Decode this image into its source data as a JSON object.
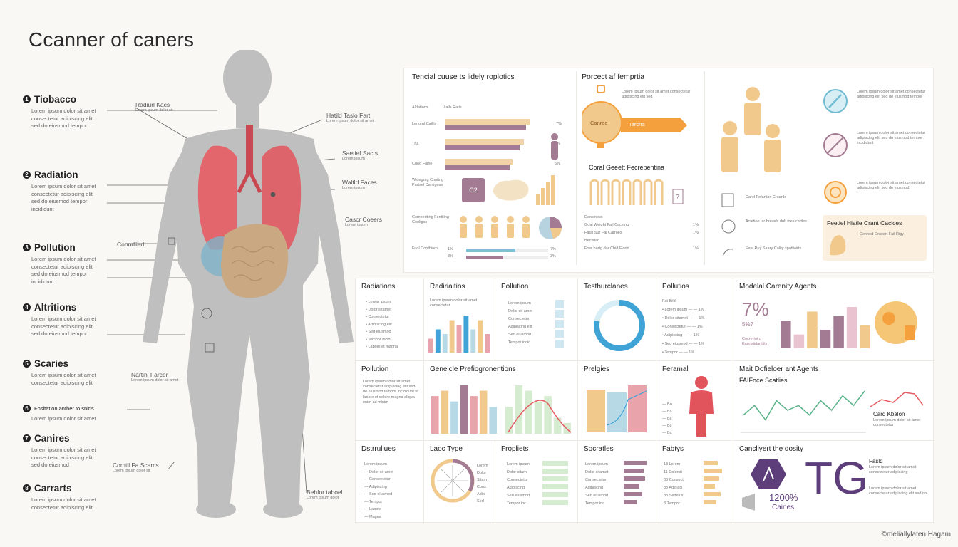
{
  "title": "Ccanner of caners",
  "footer": "©meliallylaten Hagam",
  "factors": [
    {
      "num": "1",
      "title": "Tiobacco",
      "body": "Lorem ipsum dolor sit amet consectetur adipiscing elit sed do eiusmod tempor"
    },
    {
      "num": "2",
      "title": "Radiation",
      "body": "Lorem ipsum dolor sit amet consectetur adipiscing elit sed do eiusmod tempor incididunt"
    },
    {
      "num": "3",
      "title": "Pollution",
      "body": "Lorem ipsum dolor sit amet consectetur adipiscing elit sed do eiusmod tempor incididunt"
    },
    {
      "num": "4",
      "title": "Altritions",
      "body": "Lorem ipsum dolor sit amet consectetur adipiscing elit sed do eiusmod tempor"
    },
    {
      "num": "5",
      "title": "Scaries",
      "body": "Lorem ipsum dolor sit amet consectetur adipiscing elit"
    },
    {
      "num": "6",
      "title": "Fositation anther to snirls",
      "body": "Lorem ipsum dolor sit amet"
    },
    {
      "num": "7",
      "title": "Canires",
      "body": "Lorem ipsum dolor sit amet consectetur adipiscing elit sed do eiusmod"
    },
    {
      "num": "8",
      "title": "Carrarts",
      "body": "Lorem ipsum dolor sit amet consectetur adipiscing elit"
    }
  ],
  "body_labels": {
    "l1": "Radiurl Kacs",
    "l2": "Conndiied",
    "l3": "Nartinl Farcer",
    "l4": "Comtll Fa Scarcs",
    "r1": "Hatild Taslo Fart",
    "r2": "Saetief Sacts",
    "r3": "Waltld Faces",
    "r4": "Cascr Coeers",
    "r5": "Behfor taboel"
  },
  "top_panel": {
    "title": "Tencial cuuse ts lidely roplotics",
    "col_header_a": "Aldations",
    "col_header_b": "Zalls Ratis",
    "bars": [
      {
        "label": "Lenoml Caility",
        "value": 78,
        "pct": "7%"
      },
      {
        "label": "Tha",
        "value": 72,
        "pct": "7%"
      },
      {
        "label": "Cuod Faine",
        "value": 62,
        "pct": "5%"
      }
    ],
    "row2_label": "Widegrag Conting Partsel Cantiguss",
    "row3_label": "Comperiting Fontiling Cooligss",
    "row4_label": "Fuol Conthieds",
    "progress": [
      {
        "pct": "1%",
        "value": 60,
        "end": "7%"
      },
      {
        "pct": "3%",
        "value": 45,
        "end": "3%"
      }
    ]
  },
  "mid_panel": {
    "title": "Porcect af femprtia",
    "badge_left": "Canree",
    "badge_right": "Tarcrrs",
    "sub_title": "Coral Geeett Fecrepentina",
    "list": [
      {
        "label": "Dansiness",
        "pct": ""
      },
      {
        "label": "Goal Weight Fail Caceing",
        "pct": "1%"
      },
      {
        "label": "Fatal Sur Fal Carroes",
        "pct": "1%"
      },
      {
        "label": "Becistar",
        "pct": ""
      },
      {
        "label": "Fosr bartg dar Chid Fiorid",
        "pct": "1%"
      }
    ]
  },
  "right_panel": {
    "people_label": "Carel Fefartion Croartls",
    "items": [
      "Acietion lar brevels dult ioes cattles",
      "Eaal Ruy Saary Cality spatliairts"
    ],
    "callout_title": "Feetiel Hiatle Crant Cacices",
    "callout_body": "Cenned Grasort Fail Rigy"
  },
  "grid": {
    "r1": [
      {
        "title": "Radiations"
      },
      {
        "title": "Radiriaitios"
      },
      {
        "title": "Pollution"
      },
      {
        "title": "Testhurclanes"
      },
      {
        "title": "Pollutios"
      },
      {
        "title": "Modelal Carenity Agents",
        "big": "7%",
        "sub": "5%7",
        "note": "Cocrerinirg Earnisiidantlity"
      }
    ],
    "r2": [
      {
        "title": "Pollution"
      },
      {
        "title": "Geneicle Prefiogronentions"
      },
      {
        "title": "Prelgies"
      },
      {
        "title": "Feramal"
      },
      {
        "title": "Mait Dofieloer ant Agents",
        "sub": "FAIFoce Scatlies",
        "note": "Card Kbalon"
      }
    ],
    "r3": [
      {
        "title": "Dstrrullues"
      },
      {
        "title": "Laoc Type"
      },
      {
        "title": "Fropliets"
      },
      {
        "title": "Socratles"
      },
      {
        "title": "Fabtys"
      },
      {
        "title": "Cancliyert the dosity",
        "big": "TG",
        "num": "1200%",
        "cap": "Caines",
        "note": "Fasld"
      }
    ]
  },
  "chart_data": [
    {
      "type": "bar",
      "title": "Radiriaitios",
      "values": [
        3,
        5,
        4,
        7,
        6,
        8,
        5,
        7,
        4
      ]
    },
    {
      "type": "bar",
      "title": "Modelal Carenity Agents",
      "values": [
        6,
        3,
        8,
        4,
        7,
        9,
        5
      ]
    },
    {
      "type": "bar",
      "title": "Geneicle Prefiogronentions",
      "values": [
        7,
        8,
        6,
        9,
        7,
        8,
        5
      ]
    },
    {
      "type": "bar",
      "title": "Geneicle Prefiogronentions",
      "values": [
        5,
        9,
        8,
        6,
        7,
        3,
        2
      ]
    },
    {
      "type": "line",
      "title": "FAIFoce Scatlies",
      "values": [
        3,
        5,
        2,
        6,
        4,
        5,
        3,
        6,
        4,
        7,
        5,
        8
      ]
    },
    {
      "type": "pie",
      "title": "Testhurclanes",
      "values": [
        78,
        22
      ]
    }
  ],
  "colors": {
    "lung": "#e65c63",
    "liver": "#c9a882",
    "body": "#bcbcbc",
    "accent": "#f4a13d",
    "purple": "#a37b92",
    "blue": "#3fa3d6",
    "peach": "#f2c98c"
  }
}
